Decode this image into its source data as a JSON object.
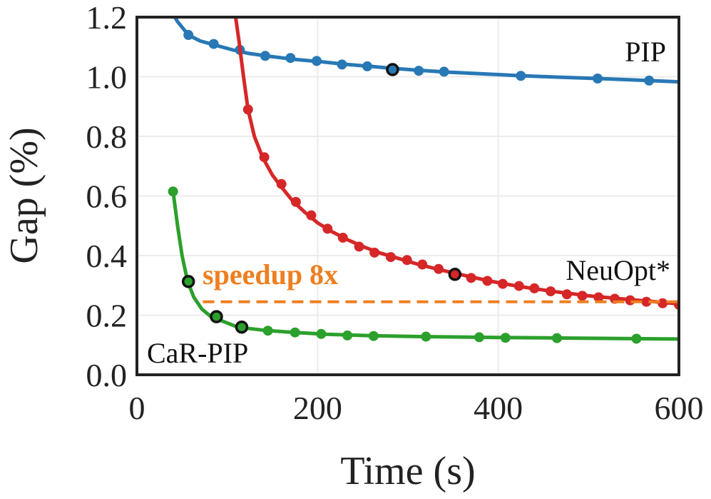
{
  "chart_data": {
    "type": "line",
    "xlabel": "Time (s)",
    "ylabel": "Gap (%)",
    "xlim": [
      0,
      600
    ],
    "ylim": [
      0.0,
      1.2
    ],
    "grid": true,
    "xticks": [
      0,
      200,
      400,
      600
    ],
    "xtick_labels": [
      "0",
      "200",
      "400",
      "600"
    ],
    "yticks": [
      0.0,
      0.2,
      0.4,
      0.6,
      0.8,
      1.0,
      1.2
    ],
    "ytick_labels": [
      "0.0",
      "0.2",
      "0.4",
      "0.6",
      "0.8",
      "1.0",
      "1.2"
    ],
    "series": [
      {
        "name": "PIP",
        "label": "PIP",
        "color": "#2878b5",
        "curve": [
          [
            33,
            1.245
          ],
          [
            45,
            1.185
          ],
          [
            57,
            1.14
          ],
          [
            70,
            1.12
          ],
          [
            88,
            1.105
          ],
          [
            106,
            1.09
          ],
          [
            124,
            1.078
          ],
          [
            148,
            1.068
          ],
          [
            175,
            1.058
          ],
          [
            205,
            1.05
          ],
          [
            230,
            1.042
          ],
          [
            258,
            1.035
          ],
          [
            283,
            1.028
          ],
          [
            310,
            1.022
          ],
          [
            340,
            1.016
          ],
          [
            380,
            1.01
          ],
          [
            420,
            1.004
          ],
          [
            470,
            0.998
          ],
          [
            510,
            0.994
          ],
          [
            560,
            0.988
          ],
          [
            600,
            0.983
          ]
        ],
        "markers": [
          [
            57,
            1.14
          ],
          [
            85,
            1.11
          ],
          [
            114,
            1.09
          ],
          [
            142,
            1.07
          ],
          [
            170,
            1.063
          ],
          [
            199,
            1.053
          ],
          [
            227,
            1.041
          ],
          [
            255,
            1.035
          ],
          [
            283,
            1.024
          ],
          [
            312,
            1.02
          ],
          [
            340,
            1.017
          ],
          [
            425,
            1.003
          ],
          [
            510,
            0.994
          ],
          [
            567,
            0.987
          ]
        ],
        "highlighted": [
          [
            283,
            1.024
          ]
        ]
      },
      {
        "name": "NeuOpt*",
        "label": "NeuOpt*",
        "color": "#d62728",
        "curve": [
          [
            107,
            1.25
          ],
          [
            113,
            1.12
          ],
          [
            118,
            1.0
          ],
          [
            123,
            0.89
          ],
          [
            130,
            0.8
          ],
          [
            139,
            0.73
          ],
          [
            150,
            0.67
          ],
          [
            160,
            0.63
          ],
          [
            172,
            0.585
          ],
          [
            186,
            0.545
          ],
          [
            200,
            0.51
          ],
          [
            216,
            0.48
          ],
          [
            234,
            0.452
          ],
          [
            252,
            0.428
          ],
          [
            270,
            0.408
          ],
          [
            290,
            0.39
          ],
          [
            312,
            0.37
          ],
          [
            336,
            0.352
          ],
          [
            360,
            0.335
          ],
          [
            390,
            0.315
          ],
          [
            420,
            0.298
          ],
          [
            460,
            0.28
          ],
          [
            500,
            0.265
          ],
          [
            540,
            0.254
          ],
          [
            570,
            0.246
          ],
          [
            600,
            0.238
          ]
        ],
        "markers": [
          [
            123,
            0.89
          ],
          [
            141,
            0.73
          ],
          [
            160,
            0.64
          ],
          [
            176,
            0.58
          ],
          [
            193,
            0.535
          ],
          [
            211,
            0.49
          ],
          [
            228,
            0.46
          ],
          [
            246,
            0.43
          ],
          [
            263,
            0.41
          ],
          [
            281,
            0.395
          ],
          [
            299,
            0.385
          ],
          [
            316,
            0.37
          ],
          [
            334,
            0.355
          ],
          [
            352,
            0.337
          ],
          [
            370,
            0.325
          ],
          [
            388,
            0.315
          ],
          [
            405,
            0.305
          ],
          [
            423,
            0.298
          ],
          [
            440,
            0.29
          ],
          [
            458,
            0.28
          ],
          [
            476,
            0.27
          ],
          [
            493,
            0.265
          ],
          [
            511,
            0.26
          ],
          [
            529,
            0.255
          ],
          [
            546,
            0.25
          ],
          [
            564,
            0.245
          ],
          [
            582,
            0.24
          ],
          [
            600,
            0.235
          ]
        ],
        "highlighted": [
          [
            352,
            0.337
          ]
        ]
      },
      {
        "name": "CaR-PIP",
        "label": "CaR-PIP",
        "color": "#2ca02c",
        "curve": [
          [
            40,
            0.615
          ],
          [
            45,
            0.5
          ],
          [
            50,
            0.4
          ],
          [
            56,
            0.315
          ],
          [
            63,
            0.26
          ],
          [
            72,
            0.22
          ],
          [
            82,
            0.195
          ],
          [
            95,
            0.18
          ],
          [
            110,
            0.162
          ],
          [
            125,
            0.155
          ],
          [
            145,
            0.148
          ],
          [
            175,
            0.142
          ],
          [
            210,
            0.136
          ],
          [
            260,
            0.131
          ],
          [
            320,
            0.128
          ],
          [
            400,
            0.125
          ],
          [
            480,
            0.123
          ],
          [
            560,
            0.121
          ],
          [
            600,
            0.12
          ]
        ],
        "markers": [
          [
            40,
            0.615
          ],
          [
            57,
            0.313
          ],
          [
            88,
            0.195
          ],
          [
            116,
            0.16
          ],
          [
            145,
            0.148
          ],
          [
            175,
            0.142
          ],
          [
            204,
            0.137
          ],
          [
            233,
            0.132
          ],
          [
            262,
            0.13
          ],
          [
            320,
            0.128
          ],
          [
            379,
            0.126
          ],
          [
            408,
            0.124
          ],
          [
            465,
            0.123
          ],
          [
            553,
            0.121
          ]
        ],
        "highlighted": [
          [
            57,
            0.313
          ],
          [
            88,
            0.195
          ],
          [
            116,
            0.16
          ]
        ]
      }
    ],
    "annotations": [
      {
        "text": "speedup 8x",
        "color": "#ee7f20",
        "line_y": 0.245,
        "line_x": [
          73,
          600
        ],
        "style": "dashed"
      }
    ]
  }
}
